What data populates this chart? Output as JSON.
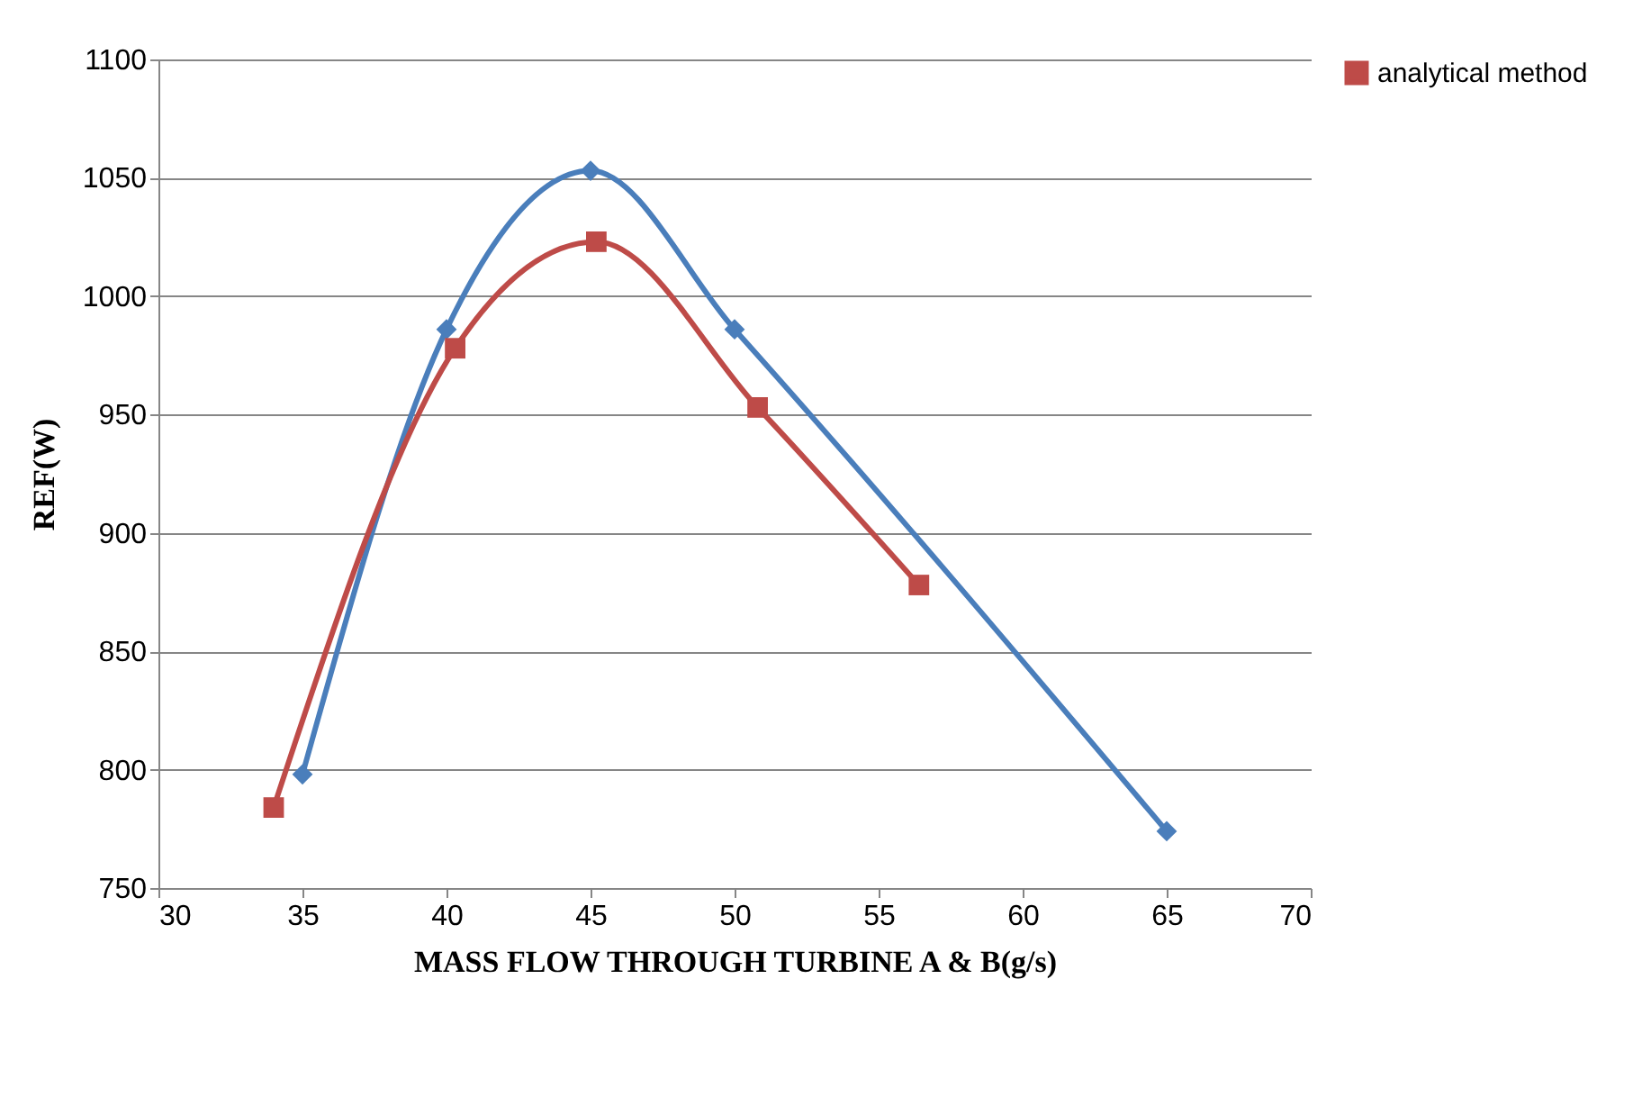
{
  "chart_data": {
    "type": "line",
    "xlabel": "MASS FLOW THROUGH TURBINE A & B(g/s)",
    "ylabel": "REF(W)",
    "xlim": [
      30,
      70
    ],
    "xticks": [
      30,
      35,
      40,
      45,
      50,
      55,
      60,
      65,
      70
    ],
    "ylim": [
      750,
      1100
    ],
    "yticks": [
      750,
      800,
      850,
      900,
      950,
      1000,
      1050,
      1100
    ],
    "grid": "y",
    "legend": "right",
    "series": [
      {
        "color": "#4a7ebb",
        "marker": "diamond",
        "x": [
          35,
          40,
          45,
          50,
          65
        ],
        "values": [
          798,
          986,
          1053,
          986,
          774
        ]
      },
      {
        "name": "analytical method",
        "color": "#be4b48",
        "marker": "square",
        "x": [
          34,
          40.3,
          45.2,
          50.8,
          56.4
        ],
        "values": [
          784,
          978,
          1023,
          953,
          878
        ]
      }
    ]
  }
}
